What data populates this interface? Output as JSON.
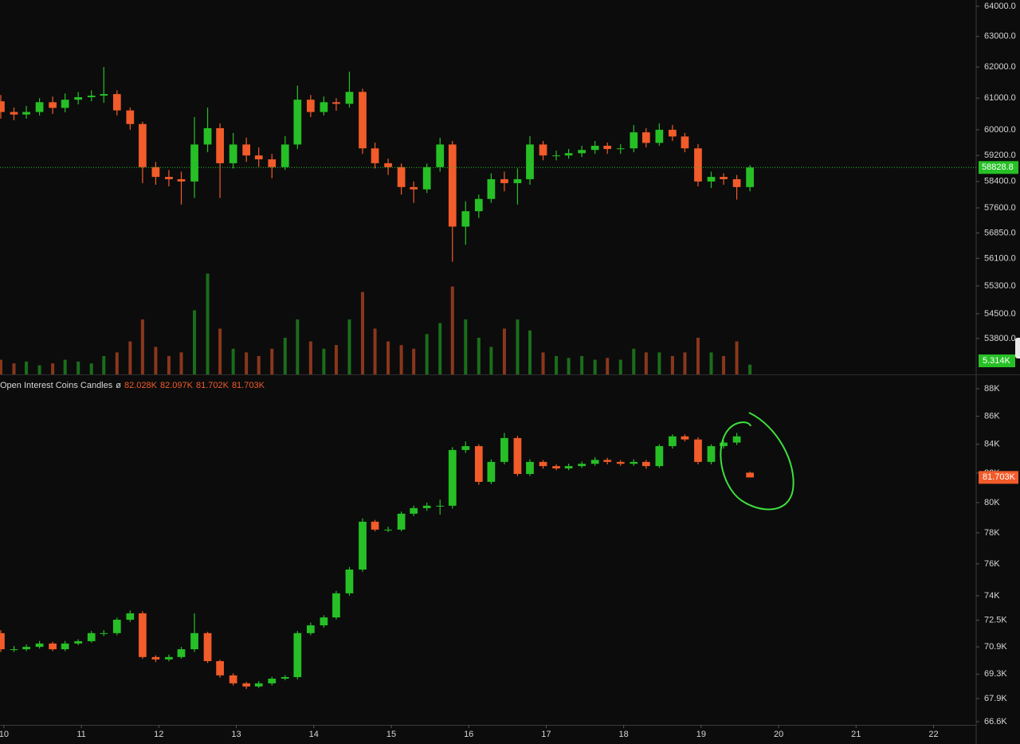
{
  "chart_data": [
    {
      "type": "candlestick",
      "x": [
        9.96,
        10.13,
        10.29,
        10.46,
        10.63,
        10.79,
        10.96,
        11.13,
        11.29,
        11.46,
        11.63,
        11.79,
        11.96,
        12.13,
        12.29,
        12.46,
        12.63,
        12.79,
        12.96,
        13.13,
        13.29,
        13.46,
        13.63,
        13.79,
        13.96,
        14.13,
        14.29,
        14.46,
        14.63,
        14.79,
        14.96,
        15.13,
        15.29,
        15.46,
        15.63,
        15.79,
        15.96,
        16.13,
        16.29,
        16.46,
        16.63,
        16.79,
        16.96,
        17.13,
        17.29,
        17.46,
        17.63,
        17.79,
        17.96,
        18.13,
        18.29,
        18.46,
        18.63,
        18.79,
        18.96,
        19.13,
        19.29,
        19.46,
        19.63
      ],
      "open": [
        60900,
        60560,
        60480,
        60560,
        60870,
        60690,
        60950,
        61030,
        61080,
        61130,
        60610,
        60180,
        58840,
        58540,
        58470,
        58400,
        59540,
        60050,
        58960,
        59540,
        59200,
        59080,
        58840,
        59540,
        60950,
        60560,
        60870,
        60820,
        61200,
        59420,
        58960,
        58840,
        58230,
        58160,
        58840,
        59540,
        57040,
        57500,
        57870,
        58470,
        58350,
        58470,
        59540,
        59200,
        59200,
        59270,
        59370,
        59500,
        59400,
        59420,
        59920,
        59590,
        60000,
        59790,
        59420,
        58400,
        58540,
        58470,
        58230
      ],
      "high": [
        61100,
        60700,
        60750,
        61000,
        61050,
        61150,
        61200,
        61250,
        62000,
        61250,
        60700,
        60250,
        59000,
        58750,
        58700,
        60400,
        60700,
        60200,
        59900,
        59750,
        59450,
        59250,
        59800,
        61400,
        61100,
        61050,
        61000,
        61850,
        61300,
        59600,
        59100,
        58950,
        58400,
        58950,
        59750,
        59650,
        57800,
        58000,
        58650,
        58700,
        58800,
        59800,
        59650,
        59350,
        59400,
        59500,
        59650,
        59600,
        59550,
        60150,
        60050,
        60200,
        60150,
        59900,
        59550,
        58700,
        58650,
        58600,
        58900
      ],
      "low": [
        60350,
        60300,
        60350,
        60450,
        60500,
        60550,
        60800,
        60900,
        60850,
        60450,
        60000,
        58350,
        58300,
        58250,
        57700,
        57900,
        59300,
        57900,
        58800,
        59000,
        58850,
        58500,
        58750,
        59400,
        60400,
        60450,
        60600,
        60700,
        59250,
        58800,
        58600,
        58000,
        57750,
        58050,
        58700,
        56000,
        56500,
        57300,
        57750,
        58100,
        57700,
        58300,
        59050,
        59050,
        59100,
        59150,
        59250,
        59250,
        59250,
        59300,
        59450,
        59500,
        59650,
        59300,
        58250,
        58200,
        58300,
        57850,
        58100
      ],
      "close": [
        60560,
        60480,
        60560,
        60870,
        60690,
        60950,
        61030,
        61080,
        61130,
        60610,
        60180,
        58840,
        58540,
        58470,
        58400,
        59540,
        60050,
        58960,
        59540,
        59200,
        59080,
        58840,
        59540,
        60950,
        60560,
        60870,
        60820,
        61200,
        59420,
        58960,
        58840,
        58230,
        58160,
        58840,
        59540,
        57040,
        57500,
        57870,
        58470,
        58350,
        58470,
        59540,
        59200,
        59200,
        59270,
        59370,
        59500,
        59400,
        59420,
        59920,
        59590,
        60000,
        59790,
        59420,
        58400,
        58540,
        58470,
        58230,
        58828.8
      ],
      "volume": [
        8,
        6,
        7,
        5,
        6,
        8,
        7,
        6,
        10,
        12,
        18,
        30,
        15,
        10,
        12,
        35,
        55,
        25,
        14,
        12,
        10,
        14,
        20,
        30,
        18,
        14,
        16,
        30,
        45,
        25,
        18,
        16,
        14,
        22,
        28,
        48,
        30,
        20,
        15,
        25,
        30,
        24,
        12,
        10,
        9,
        10,
        8,
        9,
        8,
        14,
        12,
        12,
        10,
        12,
        20,
        12,
        10,
        18,
        5.314
      ],
      "volume_last_label": "5.314K",
      "vlim": [
        0,
        100
      ],
      "xlim": [
        9.95,
        22.55
      ],
      "ylim": [
        52800,
        64210
      ],
      "log_scale": true,
      "yticks": [
        {
          "value": 64000,
          "label": "64000.0"
        },
        {
          "value": 63000,
          "label": "63000.0"
        },
        {
          "value": 62000,
          "label": "62000.0"
        },
        {
          "value": 61000,
          "label": "61000.0"
        },
        {
          "value": 60000,
          "label": "60000.0"
        },
        {
          "value": 59200,
          "label": "59200.0"
        },
        {
          "value": 58400,
          "label": "58400.0"
        },
        {
          "value": 57600,
          "label": "57600.0"
        },
        {
          "value": 56850,
          "label": "56850.0"
        },
        {
          "value": 56100,
          "label": "56100.0"
        },
        {
          "value": 55300,
          "label": "55300.0"
        },
        {
          "value": 54500,
          "label": "54500.0"
        },
        {
          "value": 53800,
          "label": "53800.0"
        }
      ],
      "up_color": "#26c026",
      "down_color": "#f25b2a",
      "last_price_line": true
    },
    {
      "type": "candlestick",
      "title": "Open Interest Coins Candles",
      "legend_symbol": "ø",
      "last_ohlc_labels": [
        "82.028K",
        "82.097K",
        "81.702K",
        "81.703K"
      ],
      "last_label": "81.703K",
      "x": [
        9.96,
        10.13,
        10.29,
        10.46,
        10.63,
        10.79,
        10.96,
        11.13,
        11.29,
        11.46,
        11.63,
        11.79,
        11.96,
        12.13,
        12.29,
        12.46,
        12.63,
        12.79,
        12.96,
        13.13,
        13.29,
        13.46,
        13.63,
        13.79,
        13.96,
        14.13,
        14.29,
        14.46,
        14.63,
        14.79,
        14.96,
        15.13,
        15.29,
        15.46,
        15.63,
        15.79,
        15.96,
        16.13,
        16.29,
        16.46,
        16.63,
        16.79,
        16.96,
        17.13,
        17.29,
        17.46,
        17.63,
        17.79,
        17.96,
        18.13,
        18.29,
        18.46,
        18.63,
        18.79,
        18.96,
        19.13,
        19.29,
        19.46,
        19.63
      ],
      "open": [
        71720,
        70760,
        70760,
        70900,
        71100,
        70760,
        71100,
        71240,
        71720,
        71720,
        72530,
        72920,
        70300,
        70160,
        70300,
        70760,
        71720,
        70060,
        69230,
        68770,
        68590,
        68770,
        69040,
        69130,
        71720,
        72190,
        72670,
        74150,
        75640,
        78730,
        78210,
        78210,
        79260,
        79630,
        79790,
        79790,
        83600,
        83870,
        81400,
        82770,
        84440,
        81940,
        82770,
        82480,
        82320,
        82480,
        82640,
        82910,
        82770,
        82640,
        82770,
        82480,
        83870,
        84560,
        84340,
        82770,
        83870,
        84120,
        82028
      ],
      "high": [
        71900,
        70950,
        71050,
        71250,
        71200,
        71250,
        71350,
        71850,
        71900,
        72650,
        73100,
        73050,
        70400,
        70450,
        70900,
        72920,
        71800,
        70150,
        69350,
        68850,
        68900,
        69150,
        69250,
        71850,
        72350,
        72800,
        74300,
        75800,
        78950,
        78850,
        78400,
        79400,
        79800,
        80000,
        80200,
        83800,
        84200,
        84000,
        82950,
        84800,
        84600,
        82950,
        82900,
        82600,
        82650,
        82800,
        83100,
        83050,
        82900,
        82950,
        82900,
        84000,
        84700,
        84700,
        84500,
        84000,
        84300,
        84800,
        82097
      ],
      "low": [
        70600,
        70600,
        70650,
        70800,
        70650,
        70650,
        71000,
        71150,
        71550,
        71600,
        72400,
        70200,
        70000,
        70050,
        70200,
        70600,
        69950,
        69100,
        68650,
        68450,
        68500,
        68650,
        68950,
        69000,
        71600,
        72050,
        72550,
        74000,
        75500,
        78100,
        78050,
        78100,
        79100,
        79450,
        79200,
        79600,
        83400,
        81200,
        81250,
        82600,
        81800,
        81800,
        82300,
        82200,
        82200,
        82350,
        82500,
        82600,
        82500,
        82500,
        82300,
        82350,
        83700,
        84200,
        82600,
        82600,
        83700,
        83950,
        81702
      ],
      "close": [
        70760,
        70760,
        70900,
        71100,
        70760,
        71100,
        71240,
        71720,
        71720,
        72530,
        72920,
        70300,
        70160,
        70300,
        70760,
        71720,
        70060,
        69230,
        68770,
        68590,
        68770,
        69040,
        69130,
        71720,
        72190,
        72670,
        74150,
        75640,
        78730,
        78210,
        78210,
        79260,
        79630,
        79790,
        79790,
        83600,
        83870,
        81400,
        82770,
        84440,
        81940,
        82770,
        82480,
        82320,
        82480,
        82640,
        82910,
        82770,
        82640,
        82770,
        82480,
        83870,
        84560,
        84340,
        82770,
        83870,
        84120,
        84560,
        81703
      ],
      "xlim": [
        9.95,
        22.55
      ],
      "ylim": [
        66420,
        89060
      ],
      "log_scale": true,
      "yticks": [
        {
          "value": 88000,
          "label": "88K"
        },
        {
          "value": 86000,
          "label": "86K"
        },
        {
          "value": 84000,
          "label": "84K"
        },
        {
          "value": 82000,
          "label": "82K"
        },
        {
          "value": 80000,
          "label": "80K"
        },
        {
          "value": 78000,
          "label": "78K"
        },
        {
          "value": 76000,
          "label": "76K"
        },
        {
          "value": 74000,
          "label": "74K"
        },
        {
          "value": 72500,
          "label": "72.5K"
        },
        {
          "value": 70900,
          "label": "70.9K"
        },
        {
          "value": 69300,
          "label": "69.3K"
        },
        {
          "value": 67900,
          "label": "67.9K"
        },
        {
          "value": 66600,
          "label": "66.6K"
        }
      ],
      "xticks": [
        10,
        11,
        12,
        13,
        14,
        15,
        16,
        17,
        18,
        19,
        20,
        21,
        22
      ],
      "up_color": "#26c026",
      "down_color": "#f25b2a"
    }
  ]
}
